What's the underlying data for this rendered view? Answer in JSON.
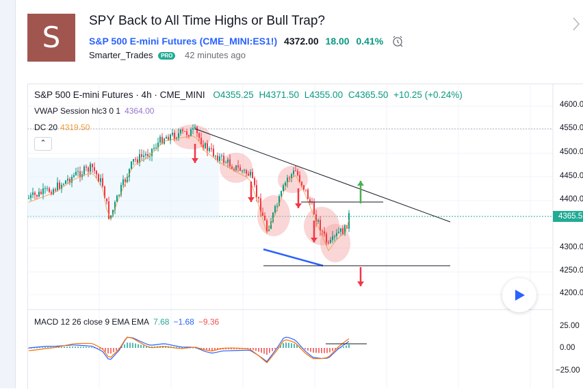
{
  "idea": {
    "avatar_letter": "S",
    "title": "SPY Back to All Time Highs or Bull Trap?",
    "symbol_label": "S&P 500 E-mini Futures (CME_MINI:ES1!)",
    "price": "4372.00",
    "change": "18.00",
    "change_pct": "0.41%",
    "author": "Smarter_Trades",
    "badge": "PRO",
    "time_ago": "42 minutes ago",
    "alarm_icon": "alarm-clock-icon"
  },
  "chart": {
    "legend_title": "S&P 500 E-mini Futures · 4h · CME_MINI",
    "open": "O4355.25",
    "high": "H4371.50",
    "low": "L4355.00",
    "close": "C4365.50",
    "change": "+10.25 (+0.24%)",
    "vwap_label": "VWAP Session hlc3 0 1",
    "vwap_value": "4364.00",
    "dc_label": "DC 20",
    "dc_value": "4319.50",
    "collapse_icon": "chevron-up-icon",
    "macd_label": "MACD 12 26 close 9 EMA EMA",
    "macd_hist": "7.68",
    "macd_line": "−1.68",
    "macd_signal": "−9.36",
    "price_axis": [
      "4600.0",
      "4550.0",
      "4500.0",
      "4450.0",
      "4400.0",
      "4365.5",
      "4300.0",
      "4250.0",
      "4200.0"
    ],
    "last_price": "4365.5",
    "macd_axis": [
      "25.00",
      "0.00",
      "−25.00"
    ],
    "colors": {
      "up": "#089981",
      "down": "#f23645",
      "trendline": "#131722",
      "support_line": "#2962ff",
      "arrow_up": "#4caf50",
      "arrow_down": "#f23645",
      "highlight": "#f4a3a3"
    }
  },
  "controls": {
    "play_icon": "play-icon",
    "next_icon": "chevron-right-icon"
  }
}
